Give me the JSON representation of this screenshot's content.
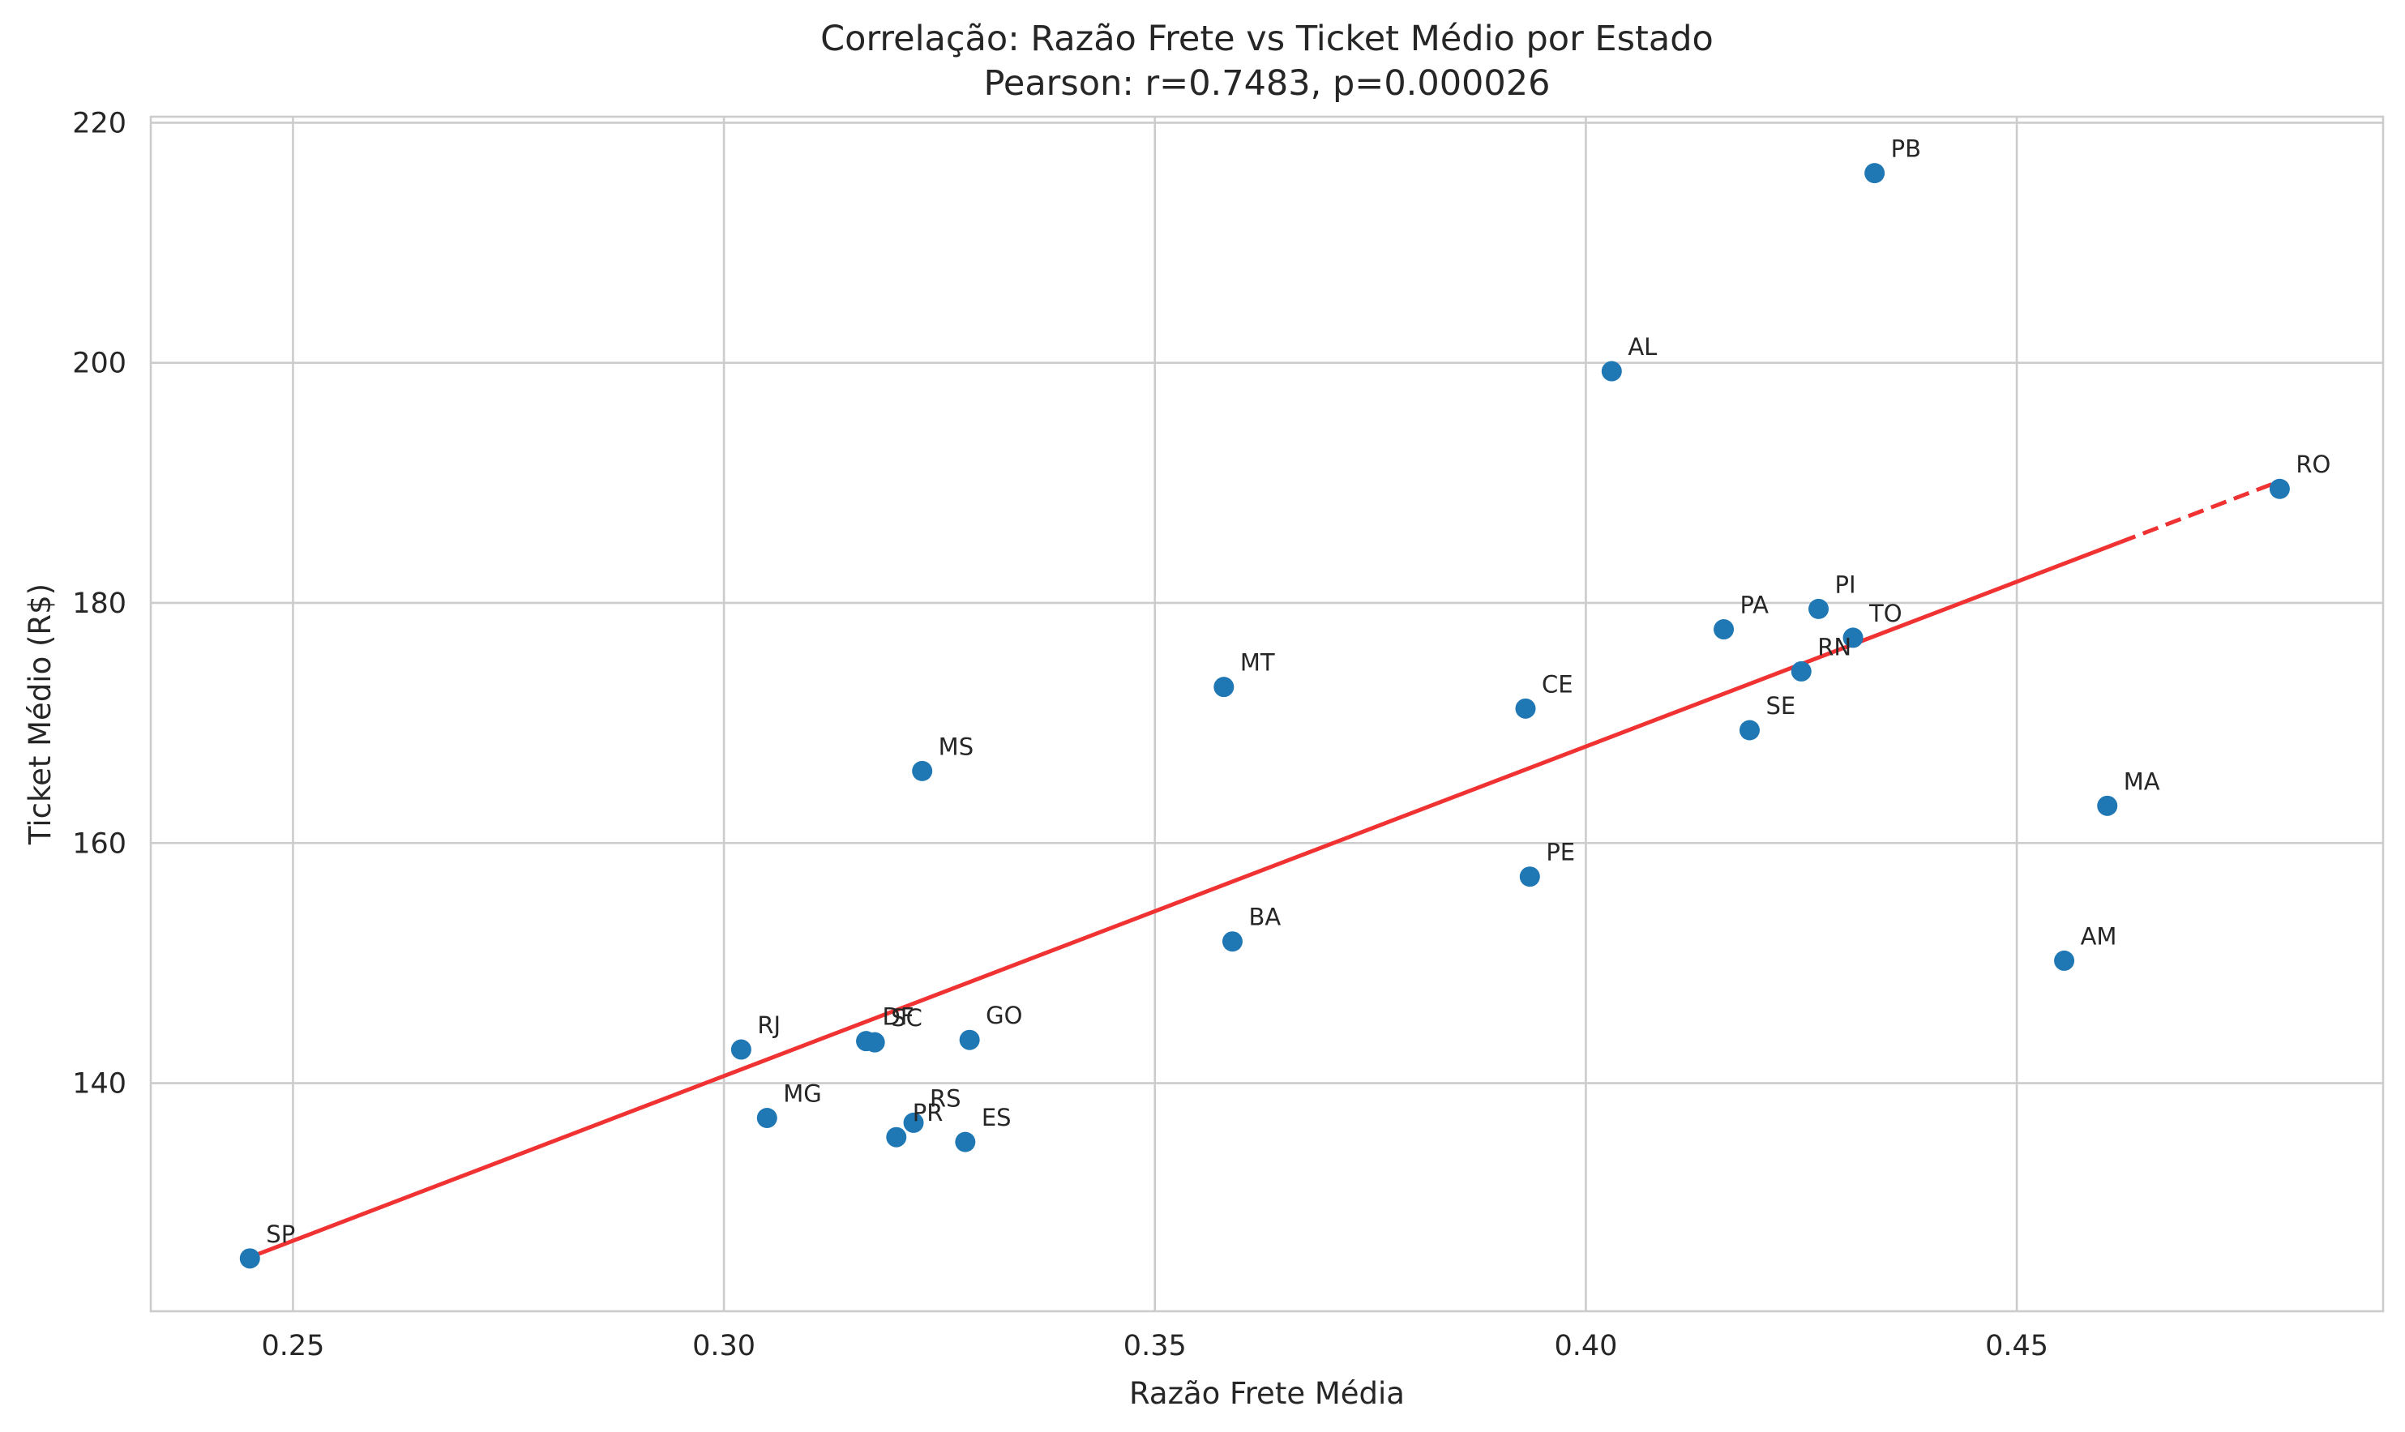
{
  "chart_data": {
    "type": "scatter",
    "title": "Correlação: Razão Frete vs Ticket Médio por Estado",
    "subtitle": "Pearson: r=0.7483, p=0.000026",
    "xlabel": "Razão Frete Média",
    "ylabel": "Ticket Médio (R$)",
    "xlim": [
      0.2335,
      0.4925
    ],
    "ylim": [
      121,
      220.5
    ],
    "x_ticks": [
      {
        "value": 0.25,
        "label": "0.25"
      },
      {
        "value": 0.3,
        "label": "0.30"
      },
      {
        "value": 0.35,
        "label": "0.35"
      },
      {
        "value": 0.4,
        "label": "0.40"
      },
      {
        "value": 0.45,
        "label": "0.45"
      }
    ],
    "y_ticks": [
      {
        "value": 140,
        "label": "140"
      },
      {
        "value": 160,
        "label": "160"
      },
      {
        "value": 180,
        "label": "180"
      },
      {
        "value": 200,
        "label": "200"
      },
      {
        "value": 220,
        "label": "220"
      }
    ],
    "grid": true,
    "point_color": "#1f77b4",
    "trend_color": "#f03232",
    "trend_line": {
      "x0": 0.245,
      "y0": 125.5,
      "x1": 0.48,
      "y1": 190.0,
      "dashed_from_x": 0.462
    },
    "points": [
      {
        "label": "SP",
        "x": 0.245,
        "y": 125.4
      },
      {
        "label": "RJ",
        "x": 0.302,
        "y": 142.8
      },
      {
        "label": "MG",
        "x": 0.305,
        "y": 137.1
      },
      {
        "label": "DF",
        "x": 0.3165,
        "y": 143.5
      },
      {
        "label": "SC",
        "x": 0.3175,
        "y": 143.4
      },
      {
        "label": "PR",
        "x": 0.32,
        "y": 135.5
      },
      {
        "label": "RS",
        "x": 0.322,
        "y": 136.7
      },
      {
        "label": "MS",
        "x": 0.323,
        "y": 166.0
      },
      {
        "label": "ES",
        "x": 0.328,
        "y": 135.1
      },
      {
        "label": "GO",
        "x": 0.3285,
        "y": 143.6
      },
      {
        "label": "MT",
        "x": 0.358,
        "y": 173.0
      },
      {
        "label": "BA",
        "x": 0.359,
        "y": 151.8
      },
      {
        "label": "CE",
        "x": 0.393,
        "y": 171.2
      },
      {
        "label": "PE",
        "x": 0.3935,
        "y": 157.2
      },
      {
        "label": "AL",
        "x": 0.403,
        "y": 199.3
      },
      {
        "label": "PA",
        "x": 0.416,
        "y": 177.8
      },
      {
        "label": "SE",
        "x": 0.419,
        "y": 169.4
      },
      {
        "label": "RN",
        "x": 0.425,
        "y": 174.3
      },
      {
        "label": "PI",
        "x": 0.427,
        "y": 179.5
      },
      {
        "label": "TO",
        "x": 0.431,
        "y": 177.1
      },
      {
        "label": "PB",
        "x": 0.4335,
        "y": 215.8
      },
      {
        "label": "AM",
        "x": 0.4555,
        "y": 150.2
      },
      {
        "label": "MA",
        "x": 0.4605,
        "y": 163.1
      },
      {
        "label": "RO",
        "x": 0.4805,
        "y": 189.5
      }
    ]
  }
}
